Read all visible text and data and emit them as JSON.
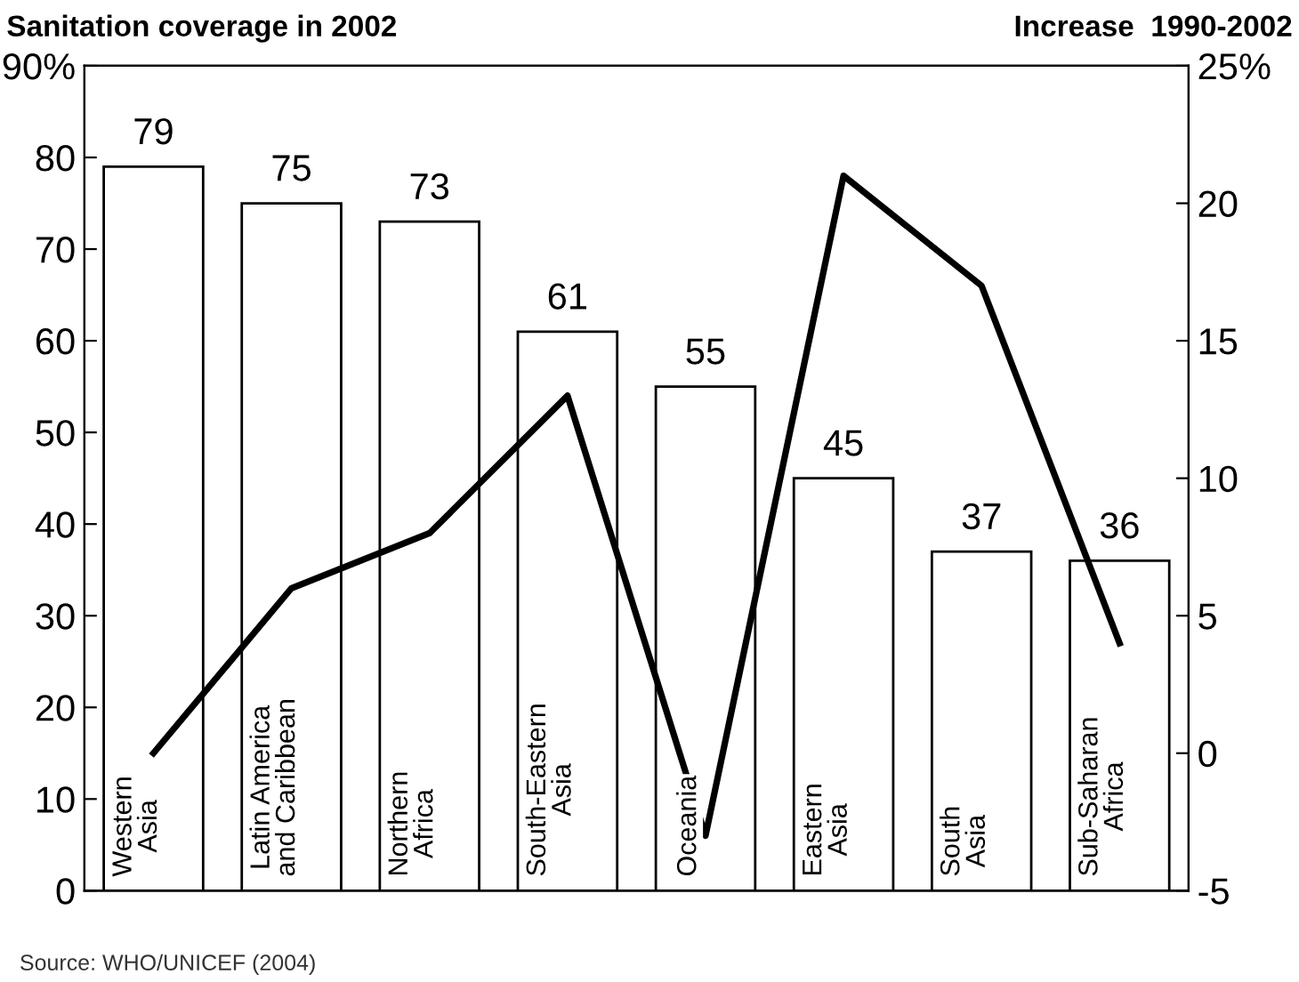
{
  "chart_data": {
    "type": "bar",
    "ylabel": "Sanitation coverage in 2002",
    "y2label": "Increase  1990-2002",
    "categories": [
      "Western\nAsia",
      "Latin America\nand Caribbean",
      "Northern\nAfrica",
      "South-Eastern\nAsia",
      "Oceania",
      "Eastern\nAsia",
      "South\nAsia",
      "Sub-Saharan\nAfrica"
    ],
    "series": [
      {
        "color": "#ffffff",
        "values": [
          79,
          75,
          73,
          61,
          55,
          45,
          37,
          36
        ],
        "value_labels": [
          "79",
          "75",
          "73",
          "61",
          "55",
          "45",
          "37",
          "36"
        ]
      },
      {
        "type": "line",
        "axis": "y2",
        "color": "#000000",
        "values": [
          0,
          6,
          8,
          13,
          -3,
          21,
          17,
          4
        ]
      }
    ],
    "ylim": [
      0,
      90
    ],
    "yticks": [
      0,
      10,
      20,
      30,
      40,
      50,
      60,
      70,
      80,
      {
        "value": 90,
        "label": "90%"
      }
    ],
    "y2lim": [
      -5,
      25
    ],
    "y2ticks": [
      -5,
      0,
      5,
      10,
      15,
      20,
      {
        "value": 25,
        "label": "25%"
      }
    ],
    "grid": false,
    "legend": false,
    "marker": "none",
    "line_style": "solid",
    "annotations": [
      "Source: WHO/UNICEF (2004)"
    ]
  }
}
